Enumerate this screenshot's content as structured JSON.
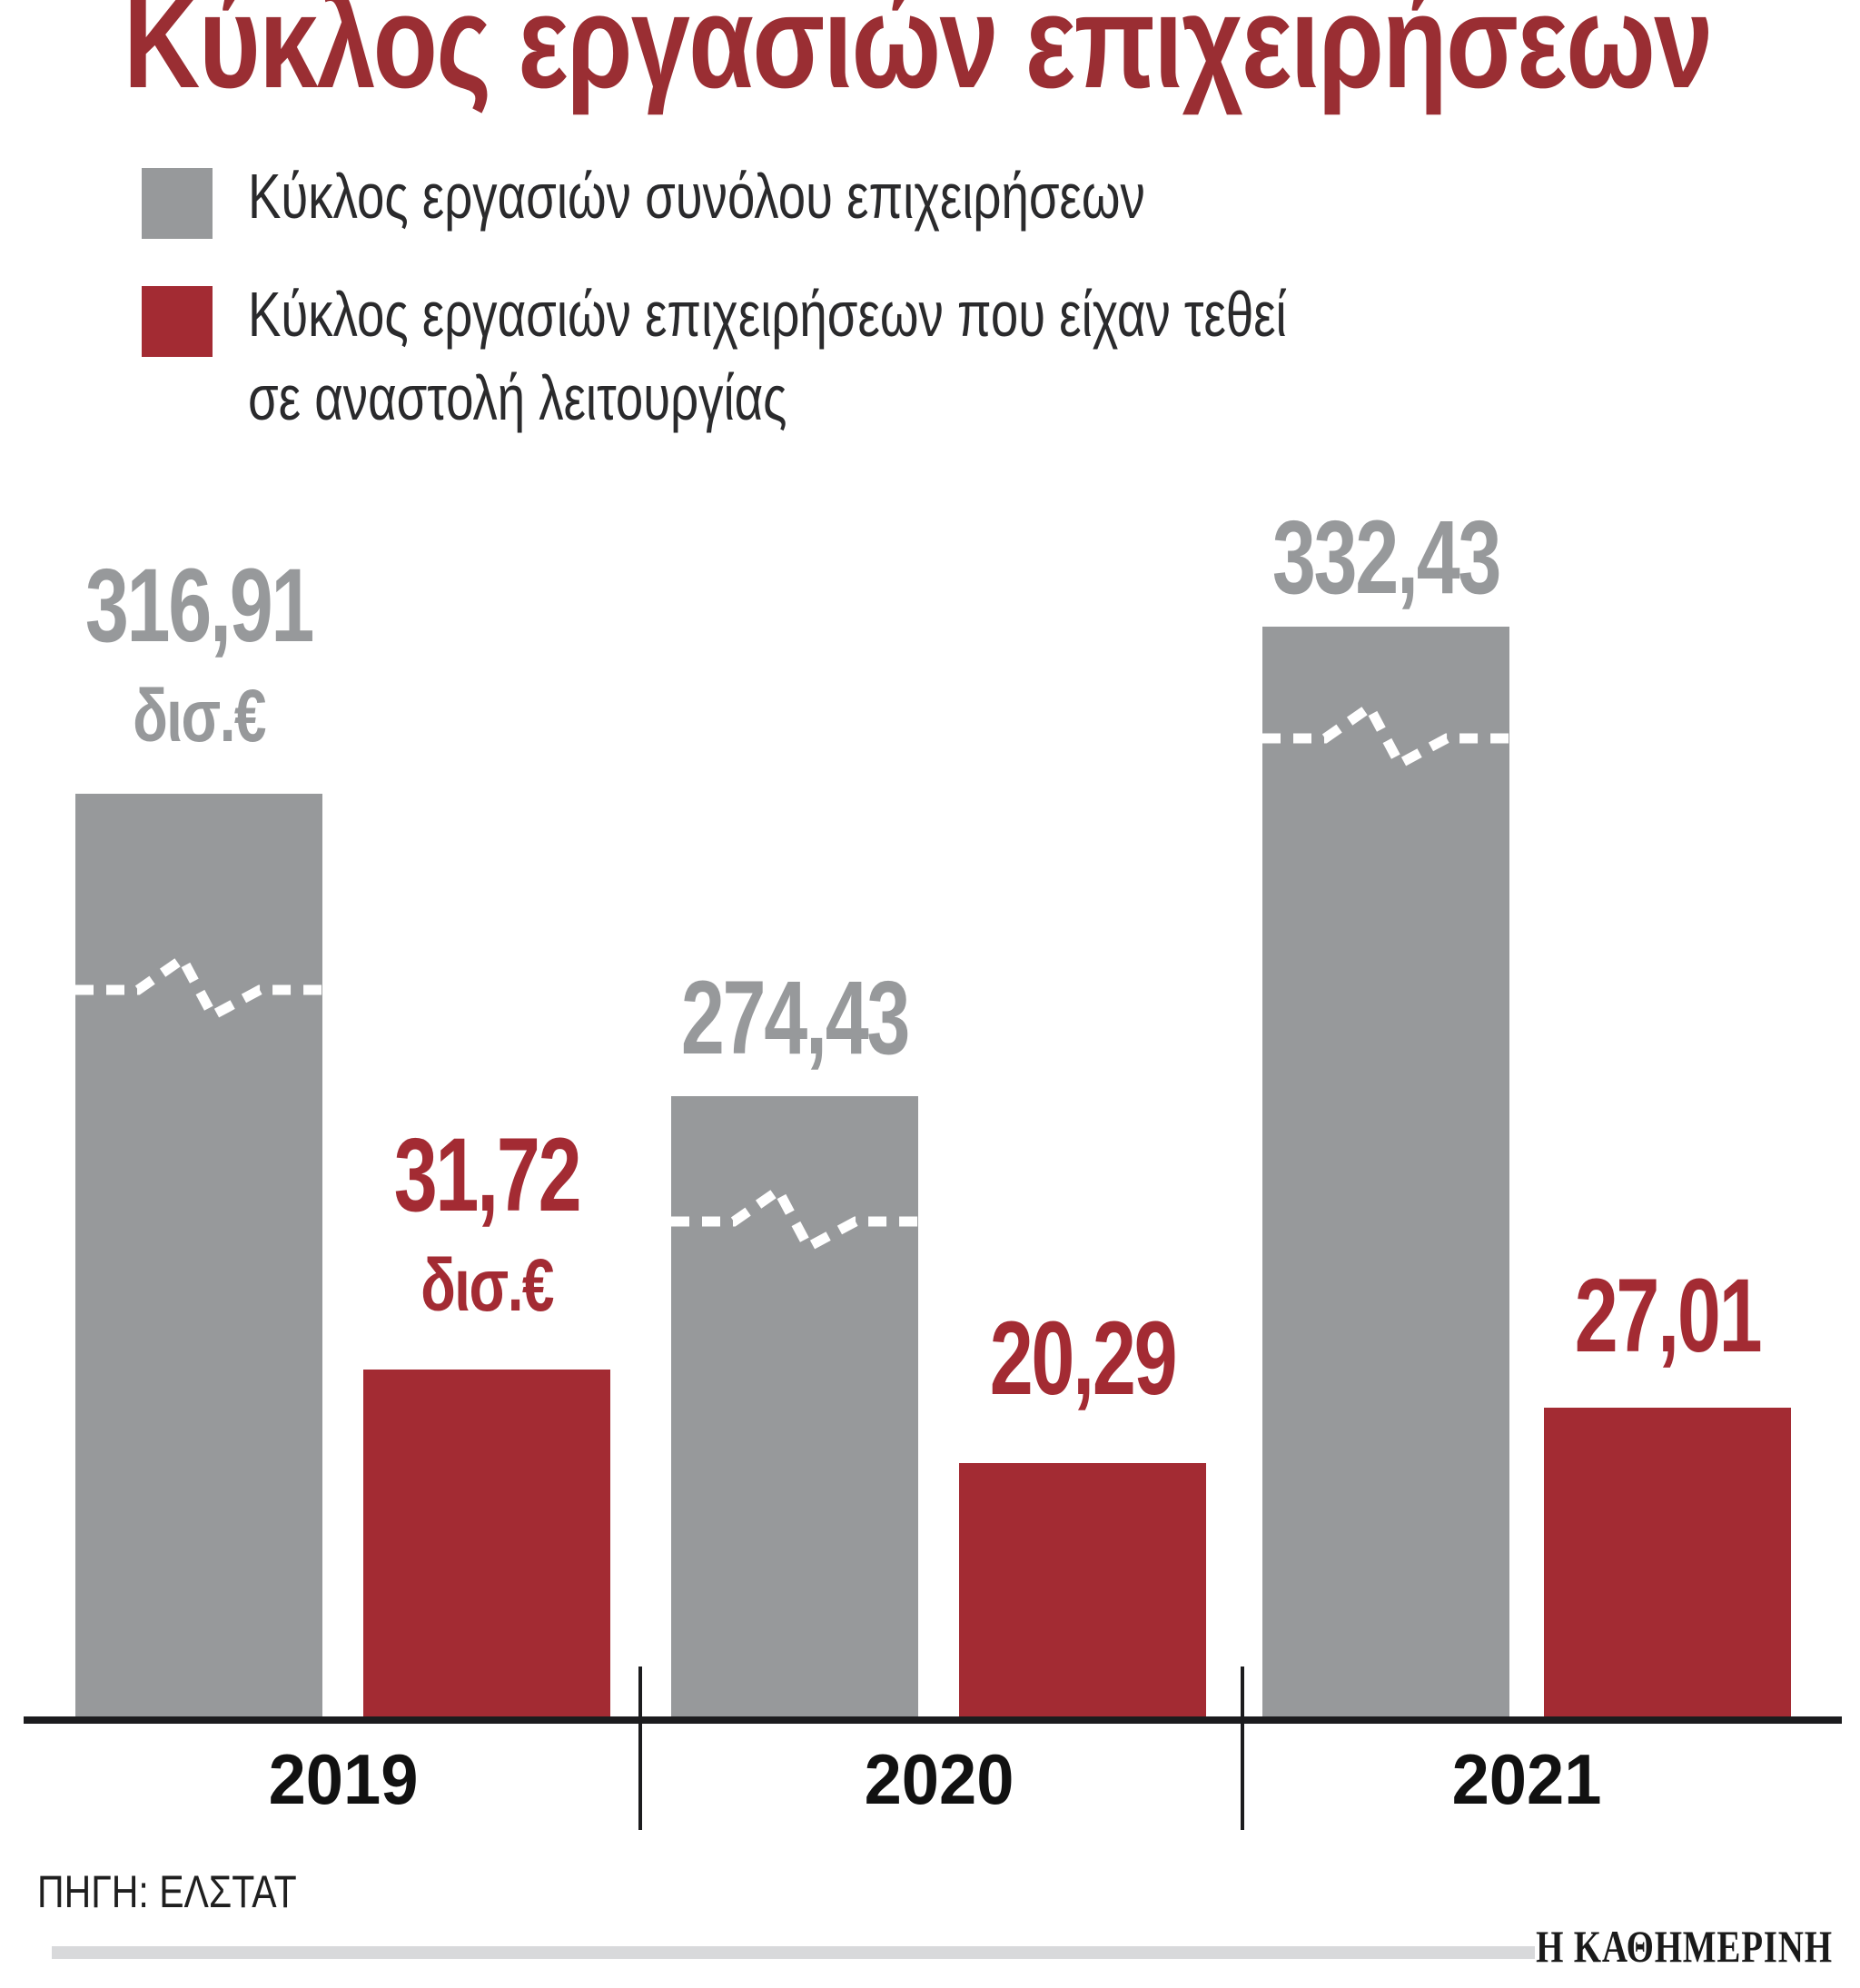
{
  "header": {
    "title": "Κύκλος εργασιών επιχειρήσεων"
  },
  "colors": {
    "title": "#9A2E33",
    "bar_total": "#97999B",
    "bar_suspended": "#A32B33",
    "axis": "#1C1C1E",
    "footer_rule": "#D8D9DB"
  },
  "legend": {
    "items": [
      {
        "swatch_color": "#97999B",
        "lines": [
          "Κύκλος εργασιών συνόλου επιχειρήσεων"
        ]
      },
      {
        "swatch_color": "#A32B33",
        "lines": [
          "Κύκλος εργασιών επιχειρήσεων που είχαν τεθεί",
          "σε αναστολή λειτουργίας"
        ]
      }
    ]
  },
  "chart_data": {
    "type": "bar",
    "title": "Κύκλος εργασιών επιχειρήσεων",
    "categories": [
      "2019",
      "2020",
      "2021"
    ],
    "series": [
      {
        "name": "Κύκλος εργασιών συνόλου επιχειρήσεων",
        "color": "#97999B",
        "values": [
          316.91,
          274.43,
          332.43
        ]
      },
      {
        "name": "Κύκλος εργασιών επιχειρήσεων που είχαν τεθεί σε αναστολή λειτουργίας",
        "color": "#A32B33",
        "values": [
          31.72,
          20.29,
          27.01
        ]
      }
    ],
    "unit": "δισ.€",
    "labels": [
      {
        "total": "316,91",
        "total_unit": "δισ.€",
        "suspended": "31,72",
        "suspended_unit": "δισ.€"
      },
      {
        "total": "274,43",
        "suspended": "20,29"
      },
      {
        "total": "332,43",
        "suspended": "27,01"
      }
    ],
    "axis_break_marks": true,
    "legend_position": "top-left",
    "grid": false,
    "xlabel": "",
    "ylabel": ""
  },
  "footer": {
    "source": "ΠΗΓΗ: ΕΛΣΤΑΤ",
    "brand": "Η ΚΑΘΗΜΕΡΙΝΗ"
  }
}
